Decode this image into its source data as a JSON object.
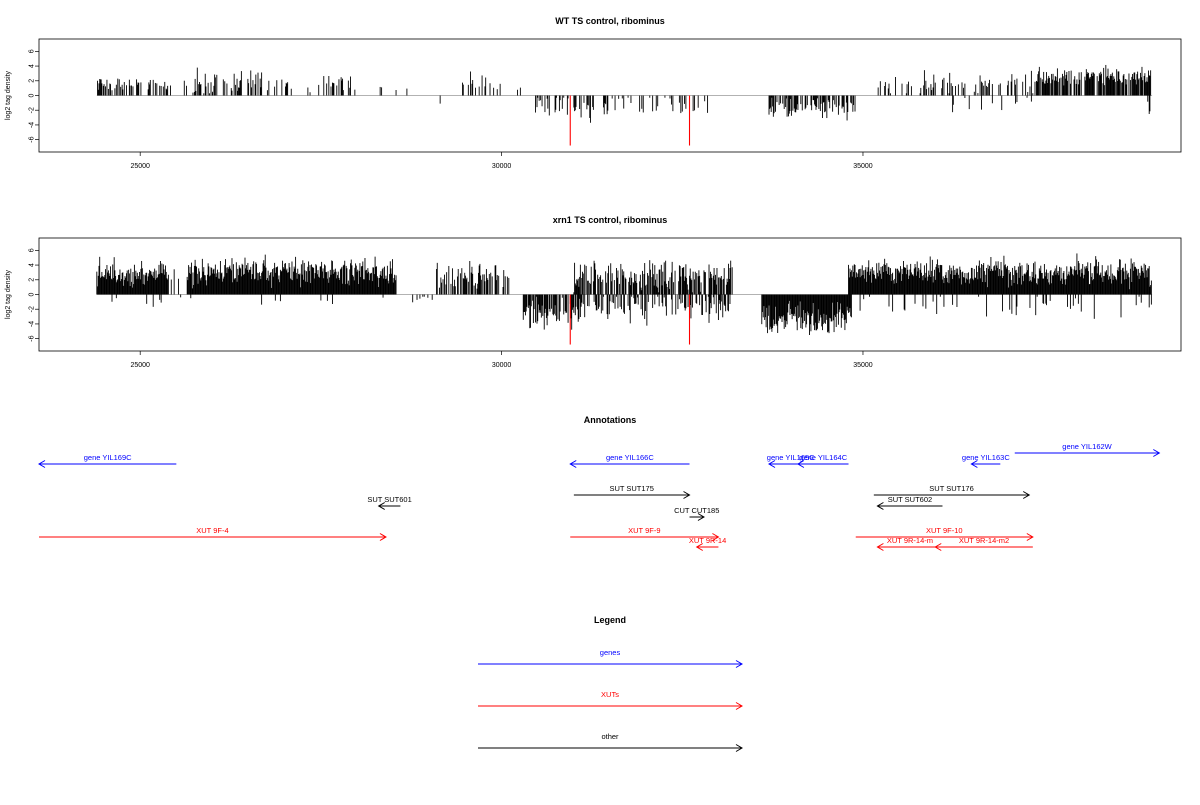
{
  "panels": [
    {
      "title": "WT TS control, ribominus",
      "ylabel": "log2 tag density",
      "yticks": [
        "6",
        "4",
        "2",
        "0",
        "-2",
        "-4",
        "-6"
      ],
      "xticks": [
        "25000",
        "30000",
        "35000"
      ]
    },
    {
      "title": "xrn1 TS control, ribominus",
      "ylabel": "log2 tag density",
      "yticks": [
        "6",
        "4",
        "2",
        "0",
        "-2",
        "-4",
        "-6"
      ],
      "xticks": [
        "25000",
        "30000",
        "35000"
      ]
    }
  ],
  "colors": {
    "genes": "#0000ff",
    "xuts": "#ff0000",
    "other": "#000000",
    "tag": "#000000",
    "marker": "#ff0000",
    "zero": "#999999"
  },
  "annotations": {
    "title": "Annotations",
    "features": [
      {
        "label": "gene YIL169C",
        "start": 23500,
        "end": 25500,
        "strand": "-",
        "color": "genes"
      },
      {
        "label": "gene YIL166C",
        "start": 30950,
        "end": 32600,
        "strand": "-",
        "color": "genes"
      },
      {
        "label": "gene YIL165C",
        "start": 33700,
        "end": 34300,
        "strand": "-",
        "color": "genes"
      },
      {
        "label": "gene YIL164C",
        "start": 34100,
        "end": 34800,
        "strand": "-",
        "color": "genes"
      },
      {
        "label": "gene YIL163C",
        "start": 36500,
        "end": 36900,
        "strand": "-",
        "color": "genes"
      },
      {
        "label": "gene YIL162W",
        "start": 37100,
        "end": 39100,
        "strand": "+",
        "color": "genes"
      },
      {
        "label": "SUT SUT175",
        "start": 31000,
        "end": 32600,
        "strand": "+",
        "color": "other"
      },
      {
        "label": "SUT SUT176",
        "start": 35150,
        "end": 37300,
        "strand": "+",
        "color": "other"
      },
      {
        "label": "SUT SUT601",
        "start": 28300,
        "end": 28600,
        "strand": "-",
        "color": "other"
      },
      {
        "label": "SUT SUT602",
        "start": 35200,
        "end": 36100,
        "strand": "-",
        "color": "other"
      },
      {
        "label": "CUT CUT185",
        "start": 32600,
        "end": 32800,
        "strand": "+",
        "color": "other"
      },
      {
        "label": "XUT 9F-4",
        "start": 23500,
        "end": 28400,
        "strand": "+",
        "color": "xuts"
      },
      {
        "label": "XUT 9F-9",
        "start": 30950,
        "end": 33000,
        "strand": "+",
        "color": "xuts"
      },
      {
        "label": "XUT 9R-14",
        "start": 32700,
        "end": 33000,
        "strand": "-",
        "color": "xuts"
      },
      {
        "label": "XUT 9F-10",
        "start": 34900,
        "end": 37350,
        "strand": "+",
        "color": "xuts"
      },
      {
        "label": "XUT 9R-14-m",
        "start": 35200,
        "end": 36100,
        "strand": "-",
        "color": "xuts"
      },
      {
        "label": "XUT 9R-14-m2",
        "start": 36000,
        "end": 37350,
        "strand": "-",
        "color": "xuts"
      }
    ]
  },
  "legend": {
    "title": "Legend",
    "items": [
      {
        "label": "genes",
        "color": "genes"
      },
      {
        "label": "XUTs",
        "color": "xuts"
      },
      {
        "label": "other",
        "color": "other"
      }
    ]
  },
  "chart_data": [
    {
      "type": "bar",
      "title": "WT TS control, ribominus",
      "xlabel": "",
      "ylabel": "log2 tag density",
      "xlim": [
        23600,
        39400
      ],
      "ylim": [
        -7,
        7
      ],
      "xticks": [
        25000,
        30000,
        35000
      ],
      "yticks": [
        6,
        4,
        2,
        0,
        -2,
        -4,
        -6
      ],
      "grid": false,
      "highlights": [
        {
          "x": 30950,
          "y": -6.8
        },
        {
          "x": 32600,
          "y": -6.8
        }
      ],
      "regions": [
        {
          "start": 24400,
          "end": 25400,
          "sign": 1,
          "density": 0.55,
          "mean": 1.6,
          "sd": 0.5
        },
        {
          "start": 25400,
          "end": 26050,
          "sign": 1,
          "density": 0.15,
          "mean": 1.2,
          "sd": 0.6
        },
        {
          "start": 25750,
          "end": 26800,
          "sign": 1,
          "density": 0.35,
          "mean": 1.8,
          "sd": 0.8
        },
        {
          "start": 26800,
          "end": 28000,
          "sign": 1,
          "density": 0.18,
          "mean": 1.6,
          "sd": 0.6
        },
        {
          "start": 28000,
          "end": 28700,
          "sign": 1,
          "density": 0.06,
          "mean": 1.2,
          "sd": 0.4
        },
        {
          "start": 28700,
          "end": 29200,
          "sign": -1,
          "density": 0.04,
          "mean": 1.0,
          "sd": 0.3
        },
        {
          "start": 29400,
          "end": 30000,
          "sign": 1,
          "density": 0.25,
          "mean": 1.8,
          "sd": 0.5
        },
        {
          "start": 30000,
          "end": 30400,
          "sign": 1,
          "density": 0.08,
          "mean": 1.2,
          "sd": 0.4
        },
        {
          "start": 30450,
          "end": 31350,
          "sign": -1,
          "density": 0.35,
          "mean": 1.8,
          "sd": 0.9
        },
        {
          "start": 31350,
          "end": 32900,
          "sign": -1,
          "density": 0.25,
          "mean": 1.5,
          "sd": 0.8
        },
        {
          "start": 33700,
          "end": 34900,
          "sign": -1,
          "density": 0.55,
          "mean": 1.7,
          "sd": 0.7
        },
        {
          "start": 35150,
          "end": 36000,
          "sign": 1,
          "density": 0.3,
          "mean": 1.5,
          "sd": 0.8
        },
        {
          "start": 36000,
          "end": 37400,
          "sign": 1,
          "density": 0.3,
          "mean": 1.7,
          "sd": 0.7
        },
        {
          "start": 36000,
          "end": 37400,
          "sign": -1,
          "density": 0.08,
          "mean": 1.4,
          "sd": 0.8
        },
        {
          "start": 37400,
          "end": 39000,
          "sign": 1,
          "density": 0.75,
          "mean": 2.6,
          "sd": 0.6
        },
        {
          "start": 38900,
          "end": 39000,
          "sign": -1,
          "density": 0.3,
          "mean": 1.5,
          "sd": 0.5
        }
      ]
    },
    {
      "type": "bar",
      "title": "xrn1 TS control, ribominus",
      "xlabel": "",
      "ylabel": "log2 tag density",
      "xlim": [
        23600,
        39400
      ],
      "ylim": [
        -7,
        7
      ],
      "xticks": [
        25000,
        30000,
        35000
      ],
      "yticks": [
        6,
        4,
        2,
        0,
        -2,
        -4,
        -6
      ],
      "grid": false,
      "highlights": [
        {
          "x": 30950,
          "y": -6.8
        },
        {
          "x": 32600,
          "y": -6.8
        }
      ],
      "regions": [
        {
          "start": 24400,
          "end": 25400,
          "sign": 1,
          "density": 1.0,
          "mean": 3.0,
          "sd": 0.9
        },
        {
          "start": 25400,
          "end": 25650,
          "sign": 1,
          "density": 0.15,
          "mean": 2.8,
          "sd": 0.5
        },
        {
          "start": 25650,
          "end": 28550,
          "sign": 1,
          "density": 1.0,
          "mean": 3.1,
          "sd": 0.9
        },
        {
          "start": 24400,
          "end": 28550,
          "sign": -1,
          "density": 0.03,
          "mean": 1.0,
          "sd": 0.4
        },
        {
          "start": 28700,
          "end": 29100,
          "sign": -1,
          "density": 0.1,
          "mean": 0.8,
          "sd": 0.4
        },
        {
          "start": 29100,
          "end": 30150,
          "sign": 1,
          "density": 0.6,
          "mean": 2.6,
          "sd": 0.9
        },
        {
          "start": 30300,
          "end": 31000,
          "sign": -1,
          "density": 0.8,
          "mean": 2.5,
          "sd": 0.9
        },
        {
          "start": 31000,
          "end": 33200,
          "sign": 1,
          "density": 0.7,
          "mean": 2.6,
          "sd": 1.0
        },
        {
          "start": 31000,
          "end": 33200,
          "sign": -1,
          "density": 0.45,
          "mean": 1.8,
          "sd": 1.0
        },
        {
          "start": 33600,
          "end": 34850,
          "sign": -1,
          "density": 1.0,
          "mean": 3.3,
          "sd": 1.1
        },
        {
          "start": 34800,
          "end": 39000,
          "sign": 1,
          "density": 1.0,
          "mean": 3.0,
          "sd": 0.9
        },
        {
          "start": 34800,
          "end": 39000,
          "sign": -1,
          "density": 0.12,
          "mean": 1.5,
          "sd": 0.9
        }
      ]
    }
  ]
}
